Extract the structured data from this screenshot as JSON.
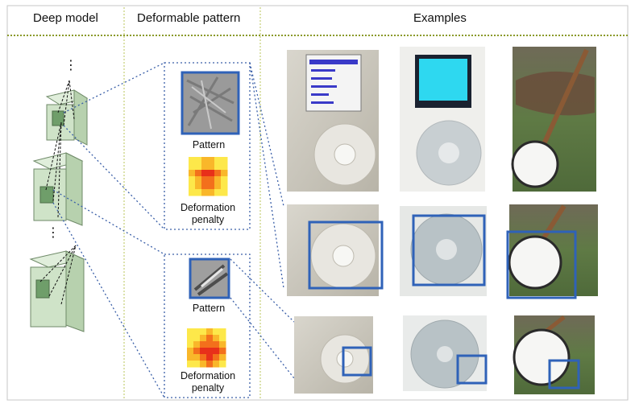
{
  "headers": {
    "col1": "Deep model",
    "col2": "Deformable pattern",
    "col3": "Examples"
  },
  "pattern_block_top": {
    "pattern_label": "Pattern",
    "penalty_label_line1": "Deformation",
    "penalty_label_line2": "penalty"
  },
  "pattern_block_bottom": {
    "pattern_label": "Pattern",
    "penalty_label_line1": "Deformation",
    "penalty_label_line2": "penalty"
  },
  "ellipsis": "⋮",
  "colors": {
    "header_rule": "#8a9a2a",
    "column_divider": "#b8c45a",
    "dotted_connector": "#3a5fa8",
    "box_blue": "#2f62b8",
    "layer_fill": "#cfe3c8",
    "layer_stroke": "#6f8a68"
  },
  "examples": {
    "rows": [
      [
        "ipod-screen-photo",
        "ipod-blue-screen-photo",
        "banjo-photo"
      ],
      [
        "ipod-wheel-crop",
        "ipod-wheel-large-crop",
        "banjo-body-crop"
      ],
      [
        "ipod-wheel-part",
        "ipod-wheel-part-2",
        "banjo-part"
      ]
    ]
  }
}
